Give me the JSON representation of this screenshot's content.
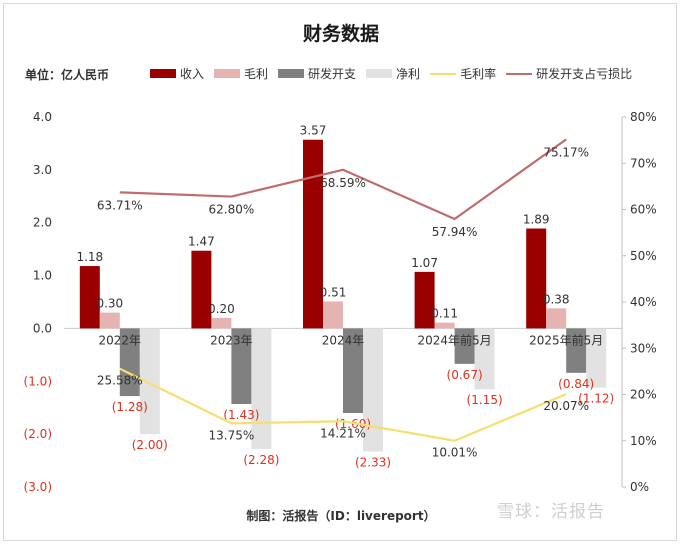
{
  "chart_data": {
    "type": "bar",
    "title": "财务数据",
    "unit_label": "单位：亿人民币",
    "categories": [
      "2022年",
      "2023年",
      "2024年",
      "2024年前5月",
      "2025年前5月"
    ],
    "series": [
      {
        "name": "收入",
        "kind": "bar",
        "axis": "left",
        "color": "#9b0000",
        "values": [
          1.18,
          1.47,
          3.57,
          1.07,
          1.89
        ],
        "labels": [
          "1.18",
          "1.47",
          "3.57",
          "1.07",
          "1.89"
        ]
      },
      {
        "name": "毛利",
        "kind": "bar",
        "axis": "left",
        "color": "#e6b3b3",
        "values": [
          0.3,
          0.2,
          0.51,
          0.11,
          0.38
        ],
        "labels": [
          "0.30",
          "0.20",
          "0.51",
          "0.11",
          "0.38"
        ]
      },
      {
        "name": "研发开支",
        "kind": "bar",
        "axis": "left",
        "color": "#808080",
        "values": [
          -1.28,
          -1.43,
          -1.6,
          -0.67,
          -0.84
        ],
        "labels": [
          "(1.28)",
          "(1.43)",
          "(1.60)",
          "(0.67)",
          "(0.84)"
        ]
      },
      {
        "name": "净利",
        "kind": "bar",
        "axis": "left",
        "color": "#e2e2e2",
        "values": [
          -2.0,
          -2.28,
          -2.33,
          -1.15,
          -1.12
        ],
        "labels": [
          "(2.00)",
          "(2.28)",
          "(2.33)",
          "(1.15)",
          "(1.12)"
        ]
      },
      {
        "name": "毛利率",
        "kind": "line",
        "axis": "right",
        "color": "#f7df6e",
        "values": [
          25.58,
          13.75,
          14.21,
          10.01,
          20.07
        ],
        "labels": [
          "25.58%",
          "13.75%",
          "14.21%",
          "10.01%",
          "20.07%"
        ]
      },
      {
        "name": "研发开支占亏损比",
        "kind": "line",
        "axis": "right",
        "color": "#c06c6c",
        "values": [
          63.71,
          62.8,
          68.59,
          57.94,
          75.17
        ],
        "labels": [
          "63.71%",
          "62.80%",
          "68.59%",
          "57.94%",
          "75.17%"
        ]
      }
    ],
    "y_left": {
      "min": -3.0,
      "max": 4.0,
      "ticks": [
        "4.0",
        "3.0",
        "2.0",
        "1.0",
        "0.0",
        "(1.0)",
        "(2.0)",
        "(3.0)"
      ],
      "tick_values": [
        4,
        3,
        2,
        1,
        0,
        -1,
        -2,
        -3
      ]
    },
    "y_right": {
      "min": 0,
      "max": 80,
      "ticks": [
        "80%",
        "70%",
        "60%",
        "50%",
        "40%",
        "30%",
        "20%",
        "10%",
        "0%"
      ],
      "tick_values": [
        80,
        70,
        60,
        50,
        40,
        30,
        20,
        10,
        0
      ]
    },
    "negative_color": "#e0301e",
    "legend_position": "top"
  },
  "footer": "制图：活报告（ID：livereport）",
  "watermark": "雪球：活报告"
}
